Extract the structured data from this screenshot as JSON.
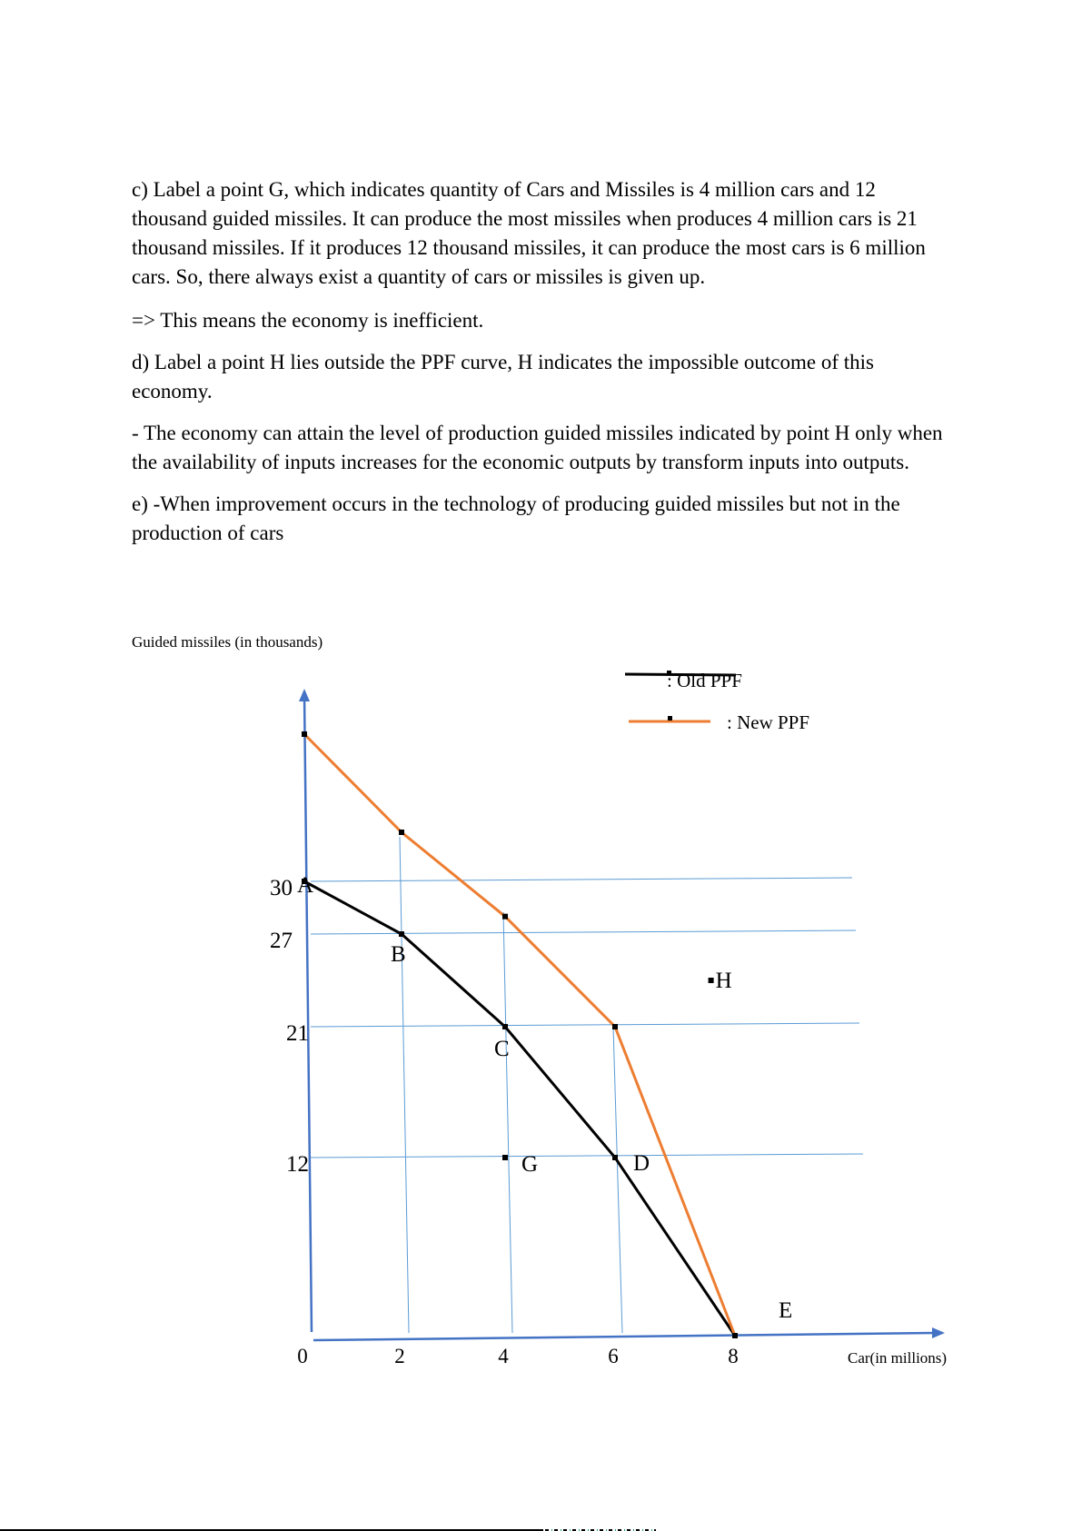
{
  "paragraphs": [
    "c) Label a point G, which indicates quantity of Cars and Missiles is 4 million cars and 12 thousand guided missiles. It can produce the most missiles when produces 4 million cars is 21 thousand missiles. If it produces 12 thousand missiles, it can produce the most cars is 6 million cars. So, there always exist a quantity of cars or missiles is given up.",
    " => This means the economy is inefficient.",
    "d) Label a point H lies outside the PPF curve, H indicates the impossible outcome of this economy.",
    "-  The economy can attain the level of production guided missiles indicated by point H only when the availability of inputs increases for the economic outputs by transform inputs into outputs.",
    "e) -When improvement occurs in the technology of producing guided missiles but not in the production of cars"
  ],
  "chart_data": {
    "type": "line",
    "title": "",
    "ylabel": "Guided missiles (in thousands)",
    "xlabel": "Car(in millions)",
    "x_ticks": [
      "0",
      "2",
      "4",
      "6",
      "8"
    ],
    "y_ticks": [
      "30",
      "27",
      "21",
      "12"
    ],
    "grid": true,
    "legend_position": "top-right",
    "series": [
      {
        "name": ": Old PPF",
        "color": "#000000",
        "points": [
          [
            0,
            30
          ],
          [
            2,
            27
          ],
          [
            4,
            21
          ],
          [
            6,
            12
          ],
          [
            8,
            0
          ]
        ],
        "labels": [
          "A",
          "B",
          "C",
          "D",
          "E"
        ]
      },
      {
        "name": ": New  PPF",
        "color": "#ed7d31",
        "points": [
          [
            0,
            39
          ],
          [
            2,
            33
          ],
          [
            4,
            28
          ],
          [
            6,
            21
          ],
          [
            8,
            0
          ]
        ]
      }
    ],
    "points": [
      {
        "label": "G",
        "x": 4,
        "y": 12
      },
      {
        "label": "H",
        "x": 7.6,
        "y": 24
      }
    ],
    "colors": {
      "axis": "#4472c4",
      "grid": "#5b9bd5"
    }
  }
}
